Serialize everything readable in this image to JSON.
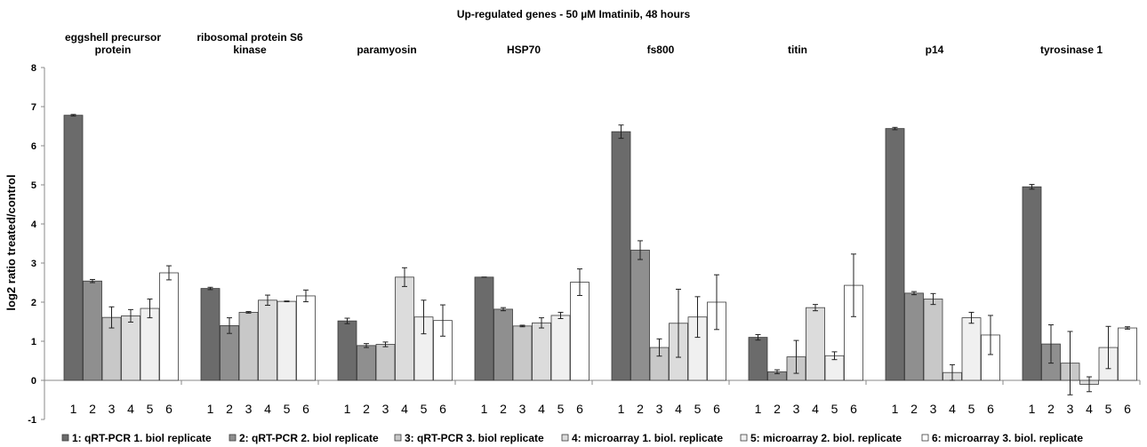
{
  "chart_data": {
    "type": "bar",
    "title": "Up-regulated genes - 50 µM Imatinib, 48 hours",
    "ylabel": "log2 ratio treated/control",
    "xlabel": "",
    "ylim": [
      -1,
      8
    ],
    "yticks": [
      -1,
      0,
      1,
      2,
      3,
      4,
      5,
      6,
      7,
      8
    ],
    "grid": false,
    "legend_position": "bottom",
    "categories": [
      [
        "eggshell precursor",
        "protein"
      ],
      [
        "ribosomal protein S6",
        "kinase"
      ],
      [
        "paramyosin"
      ],
      [
        "HSP70"
      ],
      [
        "fs800"
      ],
      [
        "titin"
      ],
      [
        "p14"
      ],
      [
        "tyrosinase 1"
      ]
    ],
    "bar_index_labels": [
      "1",
      "2",
      "3",
      "4",
      "5",
      "6"
    ],
    "series": [
      {
        "name": "1: qRT-PCR 1. biol replicate",
        "color": "#6b6b6b",
        "values": [
          6.78,
          2.35,
          1.52,
          2.64,
          6.36,
          1.1,
          6.44,
          4.95
        ],
        "errors": [
          0.02,
          0.03,
          0.07,
          0.0,
          0.17,
          0.07,
          0.03,
          0.06
        ]
      },
      {
        "name": "2: qRT-PCR 2. biol replicate",
        "color": "#8f8f8f",
        "values": [
          2.54,
          1.4,
          0.89,
          1.82,
          3.33,
          0.22,
          2.23,
          0.93
        ],
        "errors": [
          0.04,
          0.2,
          0.05,
          0.04,
          0.24,
          0.05,
          0.04,
          0.49
        ]
      },
      {
        "name": "3: qRT-PCR 3. biol replicate",
        "color": "#c8c8c8",
        "values": [
          1.61,
          1.74,
          0.92,
          1.39,
          0.84,
          0.6,
          2.08,
          0.44
        ],
        "errors": [
          0.27,
          0.02,
          0.06,
          0.02,
          0.22,
          0.42,
          0.14,
          0.81
        ]
      },
      {
        "name": "4: microarray 1. biol. replicate",
        "color": "#dcdcdc",
        "values": [
          1.65,
          2.05,
          2.64,
          1.47,
          1.46,
          1.86,
          0.2,
          -0.1
        ],
        "errors": [
          0.16,
          0.13,
          0.24,
          0.13,
          0.87,
          0.08,
          0.2,
          0.19
        ]
      },
      {
        "name": "5: microarray 2. biol. replicate",
        "color": "#f0f0f0",
        "values": [
          1.84,
          2.02,
          1.62,
          1.66,
          1.62,
          0.63,
          1.6,
          0.84
        ],
        "errors": [
          0.24,
          0.01,
          0.43,
          0.08,
          0.52,
          0.1,
          0.14,
          0.54
        ]
      },
      {
        "name": "6: microarray 3. biol. replicate",
        "color": "#ffffff",
        "values": [
          2.75,
          2.16,
          1.53,
          2.51,
          2.0,
          2.43,
          1.16,
          1.34
        ],
        "errors": [
          0.18,
          0.15,
          0.4,
          0.34,
          0.7,
          0.8,
          0.5,
          0.03
        ]
      }
    ]
  }
}
